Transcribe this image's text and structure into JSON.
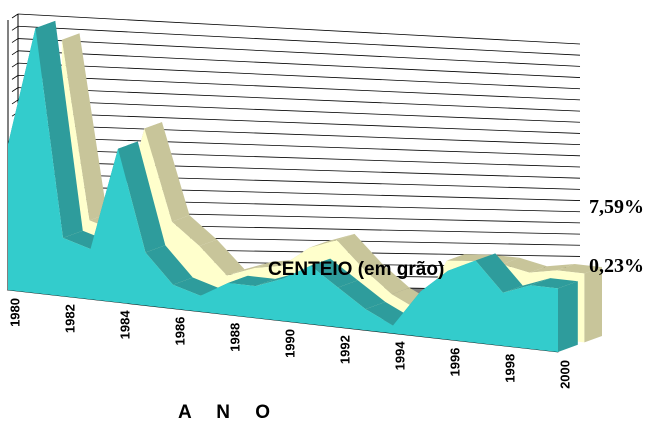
{
  "chart_data": {
    "type": "area",
    "three_d": true,
    "x": [
      1980,
      1981,
      1982,
      1983,
      1984,
      1985,
      1986,
      1987,
      1988,
      1989,
      1990,
      1991,
      1992,
      1993,
      1994,
      1995,
      1996,
      1997,
      1998,
      1999,
      2000
    ],
    "x_tick_labels": [
      "1980",
      "1982",
      "1984",
      "1986",
      "1988",
      "1990",
      "1992",
      "1994",
      "1996",
      "1998",
      "2000"
    ],
    "series": [
      {
        "name": "CENTEIO (em grão)",
        "values": [
          0.55,
          1.0,
          0.22,
          0.19,
          0.58,
          0.2,
          0.09,
          0.06,
          0.12,
          0.12,
          0.16,
          0.22,
          0.15,
          0.08,
          0.03,
          0.17,
          0.26,
          0.31,
          0.2,
          0.24,
          0.24
        ],
        "color": "#33CCCC"
      },
      {
        "name": "",
        "values": [
          0.0,
          0.92,
          0.25,
          0.22,
          0.62,
          0.28,
          0.2,
          0.1,
          0.14,
          0.16,
          0.24,
          0.28,
          0.18,
          0.1,
          0.05,
          0.25,
          0.26,
          0.26,
          0.24,
          0.26,
          0.26
        ],
        "color": "#FFFFCC"
      }
    ],
    "annotations": [
      "7,59%",
      "0,23%"
    ],
    "xlabel": "A N O",
    "ylabel": "",
    "ylim": [
      0,
      1
    ],
    "grid": true,
    "legend": "none"
  }
}
